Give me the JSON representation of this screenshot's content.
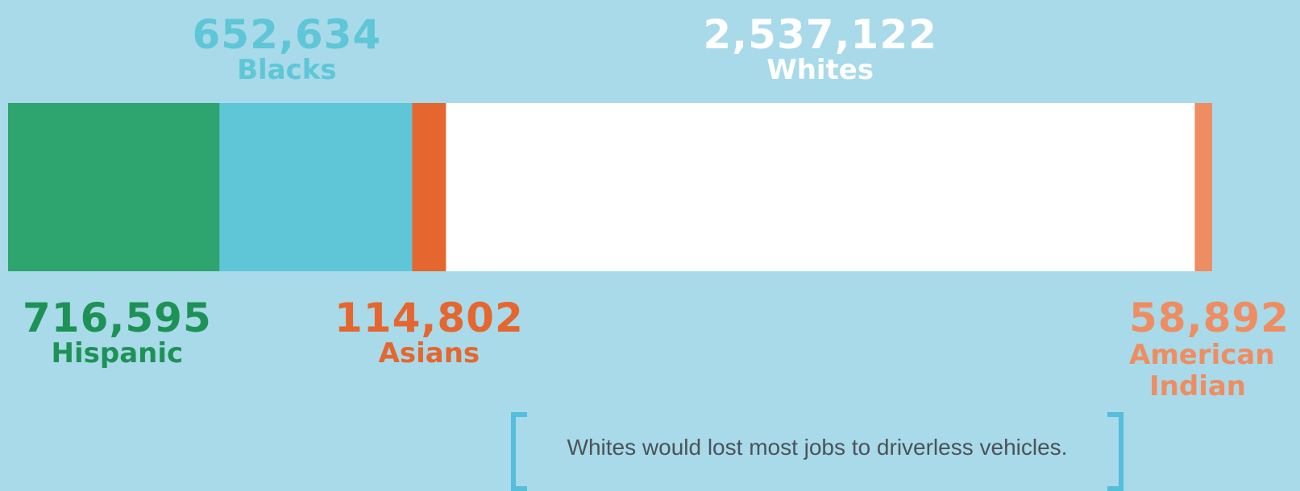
{
  "chart_data": {
    "type": "bar",
    "orientation": "stacked-horizontal",
    "categories": [
      "Hispanic",
      "Blacks",
      "Asians",
      "Whites",
      "American Indian"
    ],
    "values": [
      716595,
      652634,
      114802,
      2537122,
      58892
    ],
    "value_labels": [
      "716,595",
      "652,634",
      "114,802",
      "2,537,122",
      "58,892"
    ],
    "colors": [
      "#2ea46f",
      "#5ec6d7",
      "#e5662f",
      "#ffffff",
      "#ef8d62"
    ],
    "label_colors": [
      "#1e9256",
      "#5ec6d7",
      "#e5662f",
      "#ffffff",
      "#ef8d62"
    ],
    "label_positions": [
      "below",
      "above",
      "below",
      "above",
      "below"
    ],
    "title": "",
    "xlabel": "",
    "ylabel": "",
    "grid": false
  },
  "note": "Whites would lost most jobs to driverless vehicles.",
  "colors": {
    "background": "#a8dae9",
    "bracket": "#55bedb",
    "note_text": "#4a5358"
  }
}
